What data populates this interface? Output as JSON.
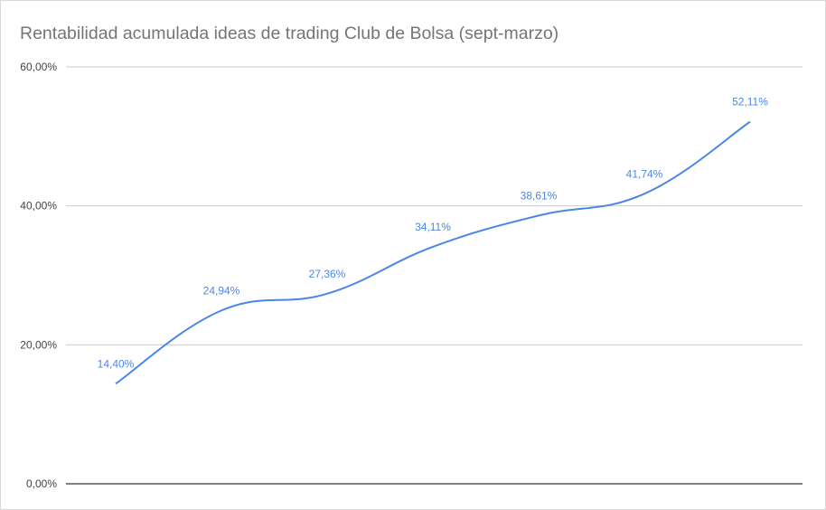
{
  "chart_data": {
    "type": "line",
    "title": "Rentabilidad acumulada ideas de trading Club de Bolsa (sept-marzo)",
    "xlabel": "",
    "ylabel": "",
    "ylim": [
      0,
      60
    ],
    "yticks": [
      0,
      20,
      40,
      60
    ],
    "ytick_labels": [
      "0,00%",
      "20,00%",
      "40,00%",
      "60,00%"
    ],
    "grid": true,
    "line_color": "#4a86e8",
    "series": [
      {
        "values": [
          14.4,
          24.94,
          27.36,
          34.11,
          38.61,
          41.74,
          52.11
        ],
        "data_labels": [
          "14,40%",
          "24,94%",
          "27,36%",
          "34,11%",
          "38,61%",
          "41,74%",
          "52,11%"
        ]
      }
    ]
  }
}
